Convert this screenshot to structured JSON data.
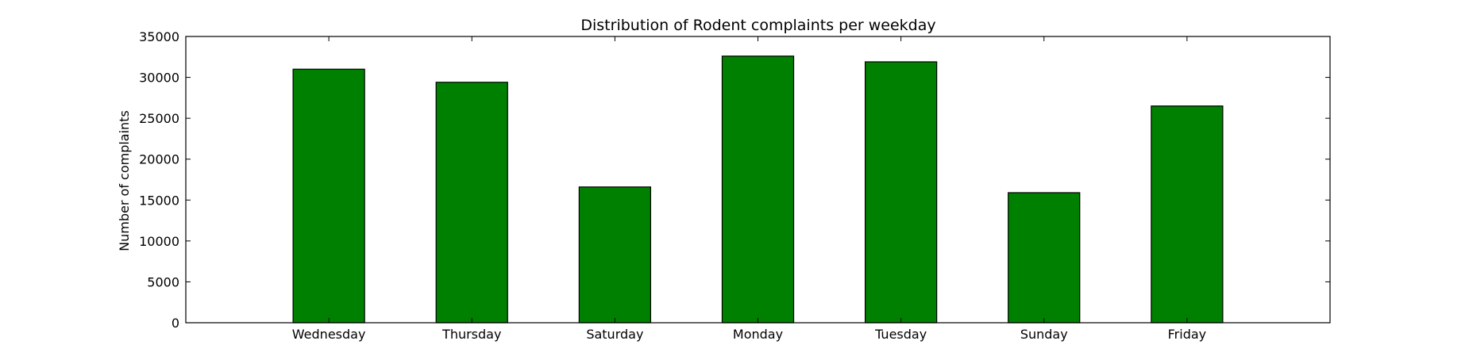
{
  "chart_data": {
    "type": "bar",
    "title": "Distribution of  Rodent complaints per weekday",
    "xlabel": "",
    "ylabel": "Number of complaints",
    "categories": [
      "Wednesday",
      "Thursday",
      "Saturday",
      "Monday",
      "Tuesday",
      "Sunday",
      "Friday"
    ],
    "values": [
      31000,
      29400,
      16600,
      32600,
      31900,
      15900,
      26500
    ],
    "ylim": [
      0,
      35000
    ],
    "yticks": [
      0,
      5000,
      10000,
      15000,
      20000,
      25000,
      30000,
      35000
    ],
    "bar_color": "#008000",
    "grid": false,
    "legend": "none"
  }
}
